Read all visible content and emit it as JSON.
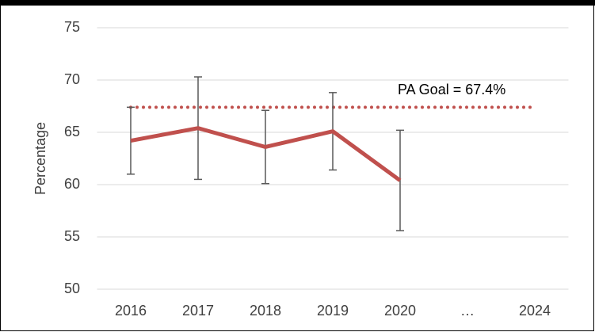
{
  "chart_data": {
    "type": "line",
    "categories": [
      "2016",
      "2017",
      "2018",
      "2019",
      "2020",
      "…",
      "2024"
    ],
    "series": [
      {
        "name": "Percentage",
        "color": "#c0504d",
        "values": [
          64.2,
          65.4,
          63.6,
          65.1,
          60.4,
          null,
          null
        ],
        "errors": [
          3.2,
          4.9,
          3.5,
          3.7,
          4.8,
          null,
          null
        ]
      }
    ],
    "error_color": "#595959",
    "goal": {
      "value": 67.4,
      "label": "PA Goal = 67.4%",
      "color": "#c0504d"
    },
    "ylabel": "Percentage",
    "ylim": [
      50,
      75
    ],
    "yticks": [
      50,
      55,
      60,
      65,
      70,
      75
    ],
    "grid": true
  }
}
